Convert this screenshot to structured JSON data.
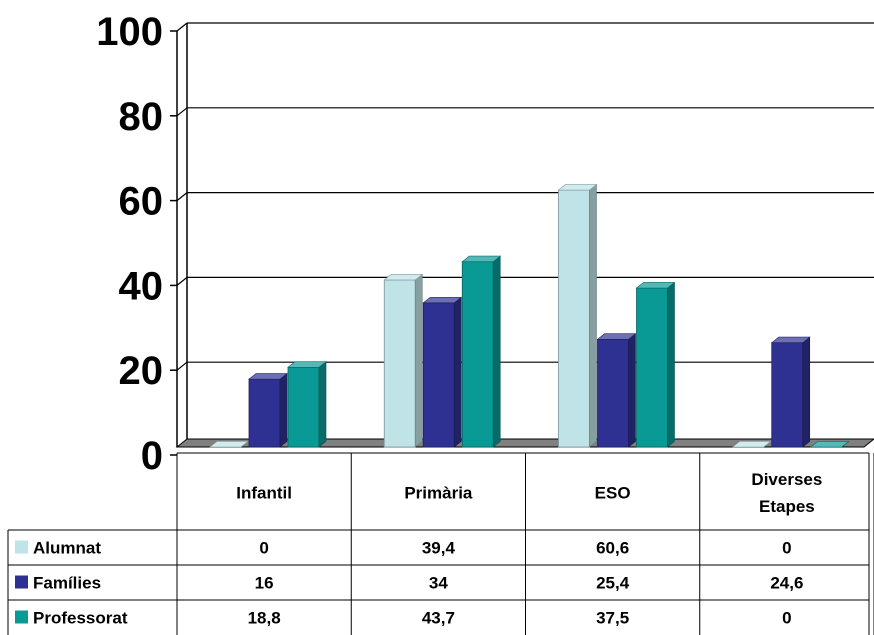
{
  "chart_data": {
    "type": "bar",
    "categories": [
      "Infantil",
      "Primària",
      "ESO",
      "Diverses Etapes"
    ],
    "category_lines": [
      [
        "Infantil"
      ],
      [
        "Primària"
      ],
      [
        "ESO"
      ],
      [
        "Diverses",
        "Etapes"
      ]
    ],
    "series": [
      {
        "name": "Alumnat",
        "values": [
          0,
          39.4,
          60.6,
          0
        ],
        "display": [
          "0",
          "39,4",
          "60,6",
          "0"
        ],
        "color": "#bfe3e6"
      },
      {
        "name": "Famílies",
        "values": [
          16,
          34,
          25.4,
          24.6
        ],
        "display": [
          "16",
          "34",
          "25,4",
          "24,6"
        ],
        "color": "#2e3192"
      },
      {
        "name": "Professorat",
        "values": [
          18.8,
          43.7,
          37.5,
          0
        ],
        "display": [
          "18,8",
          "43,7",
          "37,5",
          "0"
        ],
        "color": "#0a9a96"
      }
    ],
    "yticks": [
      0,
      20,
      40,
      60,
      80,
      100
    ],
    "ylim": [
      0,
      100
    ],
    "grid": true,
    "legend": "data-table",
    "title": "",
    "xlabel": "",
    "ylabel": ""
  }
}
